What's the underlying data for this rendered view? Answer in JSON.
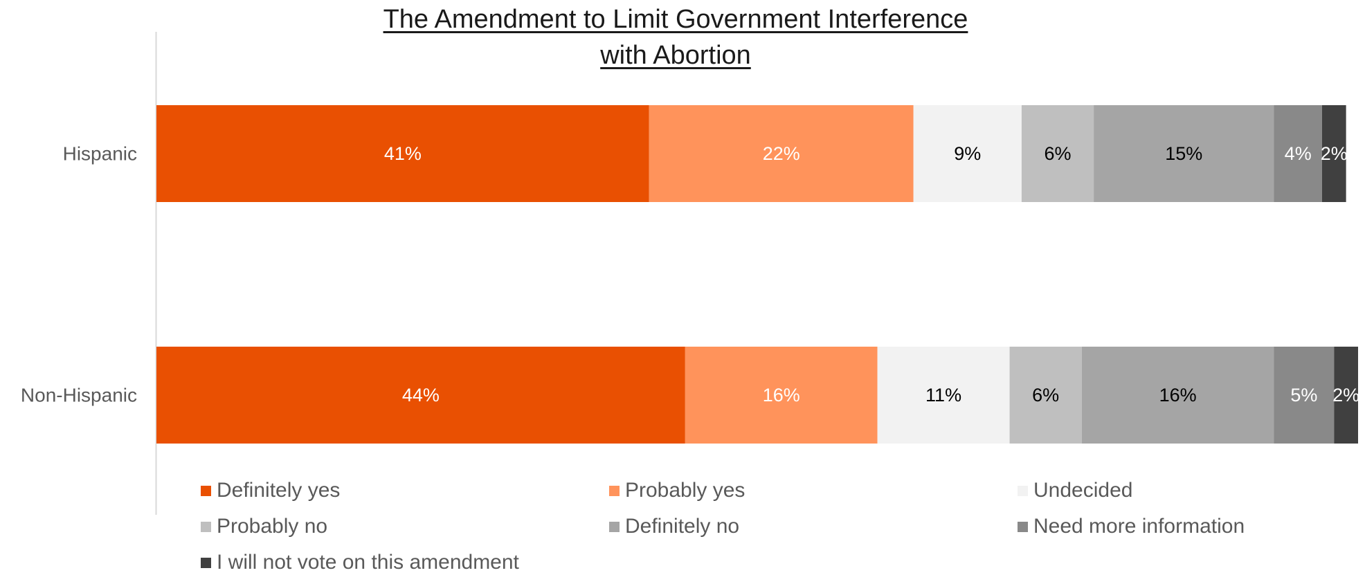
{
  "chart_data": {
    "type": "bar",
    "orientation": "horizontal",
    "stacked": true,
    "title": "The Amendment to Limit Government Interference with Abortion",
    "title_lines": [
      "The Amendment to Limit Government Interference",
      "with Abortion"
    ],
    "categories": [
      "Hispanic",
      "Non-Hispanic"
    ],
    "xlim": [
      0,
      100
    ],
    "grid": false,
    "legend_position": "bottom",
    "series": [
      {
        "name": "Definitely yes",
        "values": [
          41,
          44
        ],
        "labels": [
          "41%",
          "44%"
        ],
        "color": "#E95002",
        "label_color": "#FFFFFF"
      },
      {
        "name": "Probably yes",
        "values": [
          22,
          16
        ],
        "labels": [
          "22%",
          "16%"
        ],
        "color": "#FF935B",
        "label_color": "#FFFFFF"
      },
      {
        "name": "Undecided",
        "values": [
          9,
          11
        ],
        "labels": [
          "9%",
          "11%"
        ],
        "color": "#F2F2F2",
        "label_color": "#000000"
      },
      {
        "name": "Probably no",
        "values": [
          6,
          6
        ],
        "labels": [
          "6%",
          "6%"
        ],
        "color": "#BFBFBF",
        "label_color": "#000000"
      },
      {
        "name": "Definitely no",
        "values": [
          15,
          16
        ],
        "labels": [
          "15%",
          "16%"
        ],
        "color": "#A5A5A5",
        "label_color": "#000000"
      },
      {
        "name": "Need more information",
        "values": [
          4,
          5
        ],
        "labels": [
          "4%",
          "5%"
        ],
        "color": "#898989",
        "label_color": "#FFFFFF"
      },
      {
        "name": "I will not vote on this amendment",
        "values": [
          2,
          2
        ],
        "labels": [
          "2%",
          "2%"
        ],
        "color": "#404040",
        "label_color": "#FFFFFF"
      }
    ]
  }
}
